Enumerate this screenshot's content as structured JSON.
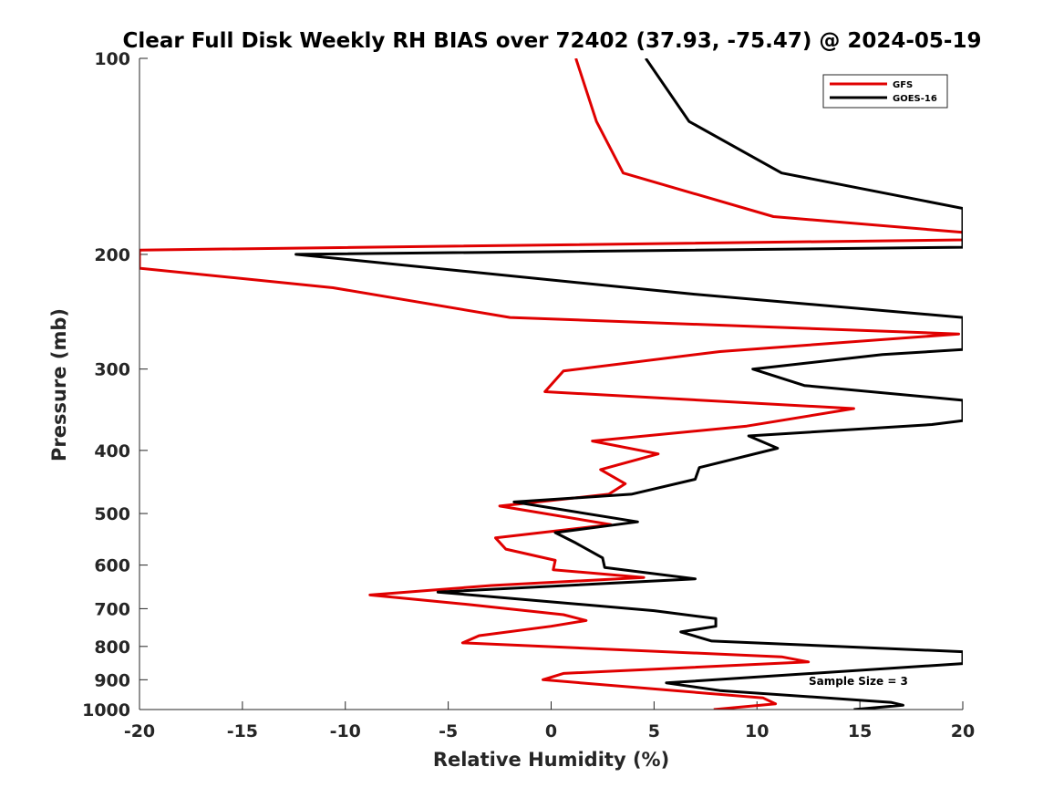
{
  "chart_data": {
    "type": "line",
    "title": "Clear Full Disk Weekly RH BIAS over 72402 (37.93, -75.47) @ 2024-05-19",
    "xlabel": "Relative Humidity (%)",
    "ylabel": "Pressure (mb)",
    "xlim": [
      -20,
      20
    ],
    "ylim": [
      100,
      1000
    ],
    "y_scale": "log",
    "y_reversed": true,
    "grid": false,
    "xticks": [
      -20,
      -15,
      -10,
      -5,
      0,
      5,
      10,
      15,
      20
    ],
    "xtick_labels": [
      "-20",
      "-15",
      "-10",
      "-5",
      "0",
      "5",
      "10",
      "15",
      "20"
    ],
    "yticks": [
      100,
      200,
      300,
      400,
      500,
      600,
      700,
      800,
      900,
      1000
    ],
    "ytick_labels": [
      "100",
      "200",
      "300",
      "400",
      "500",
      "600",
      "700",
      "800",
      "900",
      "1000"
    ],
    "legend_position": "top-right",
    "annotation": "Sample Size = 3",
    "series": [
      {
        "name": "GFS",
        "color": "#e00000",
        "points": [
          [
            1.2,
            100
          ],
          [
            2.2,
            125
          ],
          [
            3.5,
            150
          ],
          [
            10.8,
            175
          ],
          [
            20,
            185
          ],
          [
            20,
            190
          ],
          [
            -20,
            197
          ],
          [
            -20,
            210
          ],
          [
            -10.6,
            225
          ],
          [
            -2.0,
            250
          ],
          [
            19.8,
            265
          ],
          [
            8.2,
            282
          ],
          [
            0.6,
            302
          ],
          [
            -0.3,
            325
          ],
          [
            14.7,
            345
          ],
          [
            9.5,
            367
          ],
          [
            2.0,
            387
          ],
          [
            5.2,
            405
          ],
          [
            2.4,
            428
          ],
          [
            3.6,
            450
          ],
          [
            2.8,
            467
          ],
          [
            -2.5,
            487
          ],
          [
            2.9,
            520
          ],
          [
            -2.7,
            545
          ],
          [
            -2.2,
            567
          ],
          [
            0.2,
            590
          ],
          [
            0.1,
            610
          ],
          [
            4.5,
            627
          ],
          [
            -2.9,
            645
          ],
          [
            -8.8,
            667
          ],
          [
            -4.0,
            690
          ],
          [
            0.6,
            715
          ],
          [
            1.7,
            730
          ],
          [
            0.0,
            745
          ],
          [
            -3.5,
            770
          ],
          [
            -4.3,
            790
          ],
          [
            11.2,
            830
          ],
          [
            12.5,
            845
          ],
          [
            0.6,
            880
          ],
          [
            -0.4,
            900
          ],
          [
            10.3,
            960
          ],
          [
            10.9,
            980
          ],
          [
            7.9,
            1000
          ]
        ]
      },
      {
        "name": "GOES-16",
        "color": "#000000",
        "points": [
          [
            4.6,
            100
          ],
          [
            6.7,
            125
          ],
          [
            11.2,
            150
          ],
          [
            20,
            170
          ],
          [
            20,
            195
          ],
          [
            -12.4,
            200
          ],
          [
            6.8,
            230
          ],
          [
            16.8,
            245
          ],
          [
            20,
            250
          ],
          [
            20,
            280
          ],
          [
            16.1,
            285
          ],
          [
            9.8,
            300
          ],
          [
            12.3,
            318
          ],
          [
            20,
            335
          ],
          [
            20,
            360
          ],
          [
            18.5,
            365
          ],
          [
            9.6,
            380
          ],
          [
            11.0,
            397
          ],
          [
            7.2,
            425
          ],
          [
            7.0,
            443
          ],
          [
            3.9,
            467
          ],
          [
            -1.8,
            480
          ],
          [
            4.2,
            515
          ],
          [
            0.2,
            535
          ],
          [
            1.2,
            555
          ],
          [
            2.5,
            585
          ],
          [
            2.6,
            605
          ],
          [
            7.0,
            630
          ],
          [
            -5.5,
            660
          ],
          [
            5.0,
            705
          ],
          [
            8.0,
            725
          ],
          [
            8.0,
            745
          ],
          [
            6.3,
            760
          ],
          [
            7.8,
            785
          ],
          [
            20,
            815
          ],
          [
            20,
            850
          ],
          [
            5.6,
            910
          ],
          [
            8.2,
            935
          ],
          [
            16.5,
            975
          ],
          [
            17.1,
            985
          ],
          [
            14.7,
            1000
          ]
        ]
      }
    ]
  }
}
